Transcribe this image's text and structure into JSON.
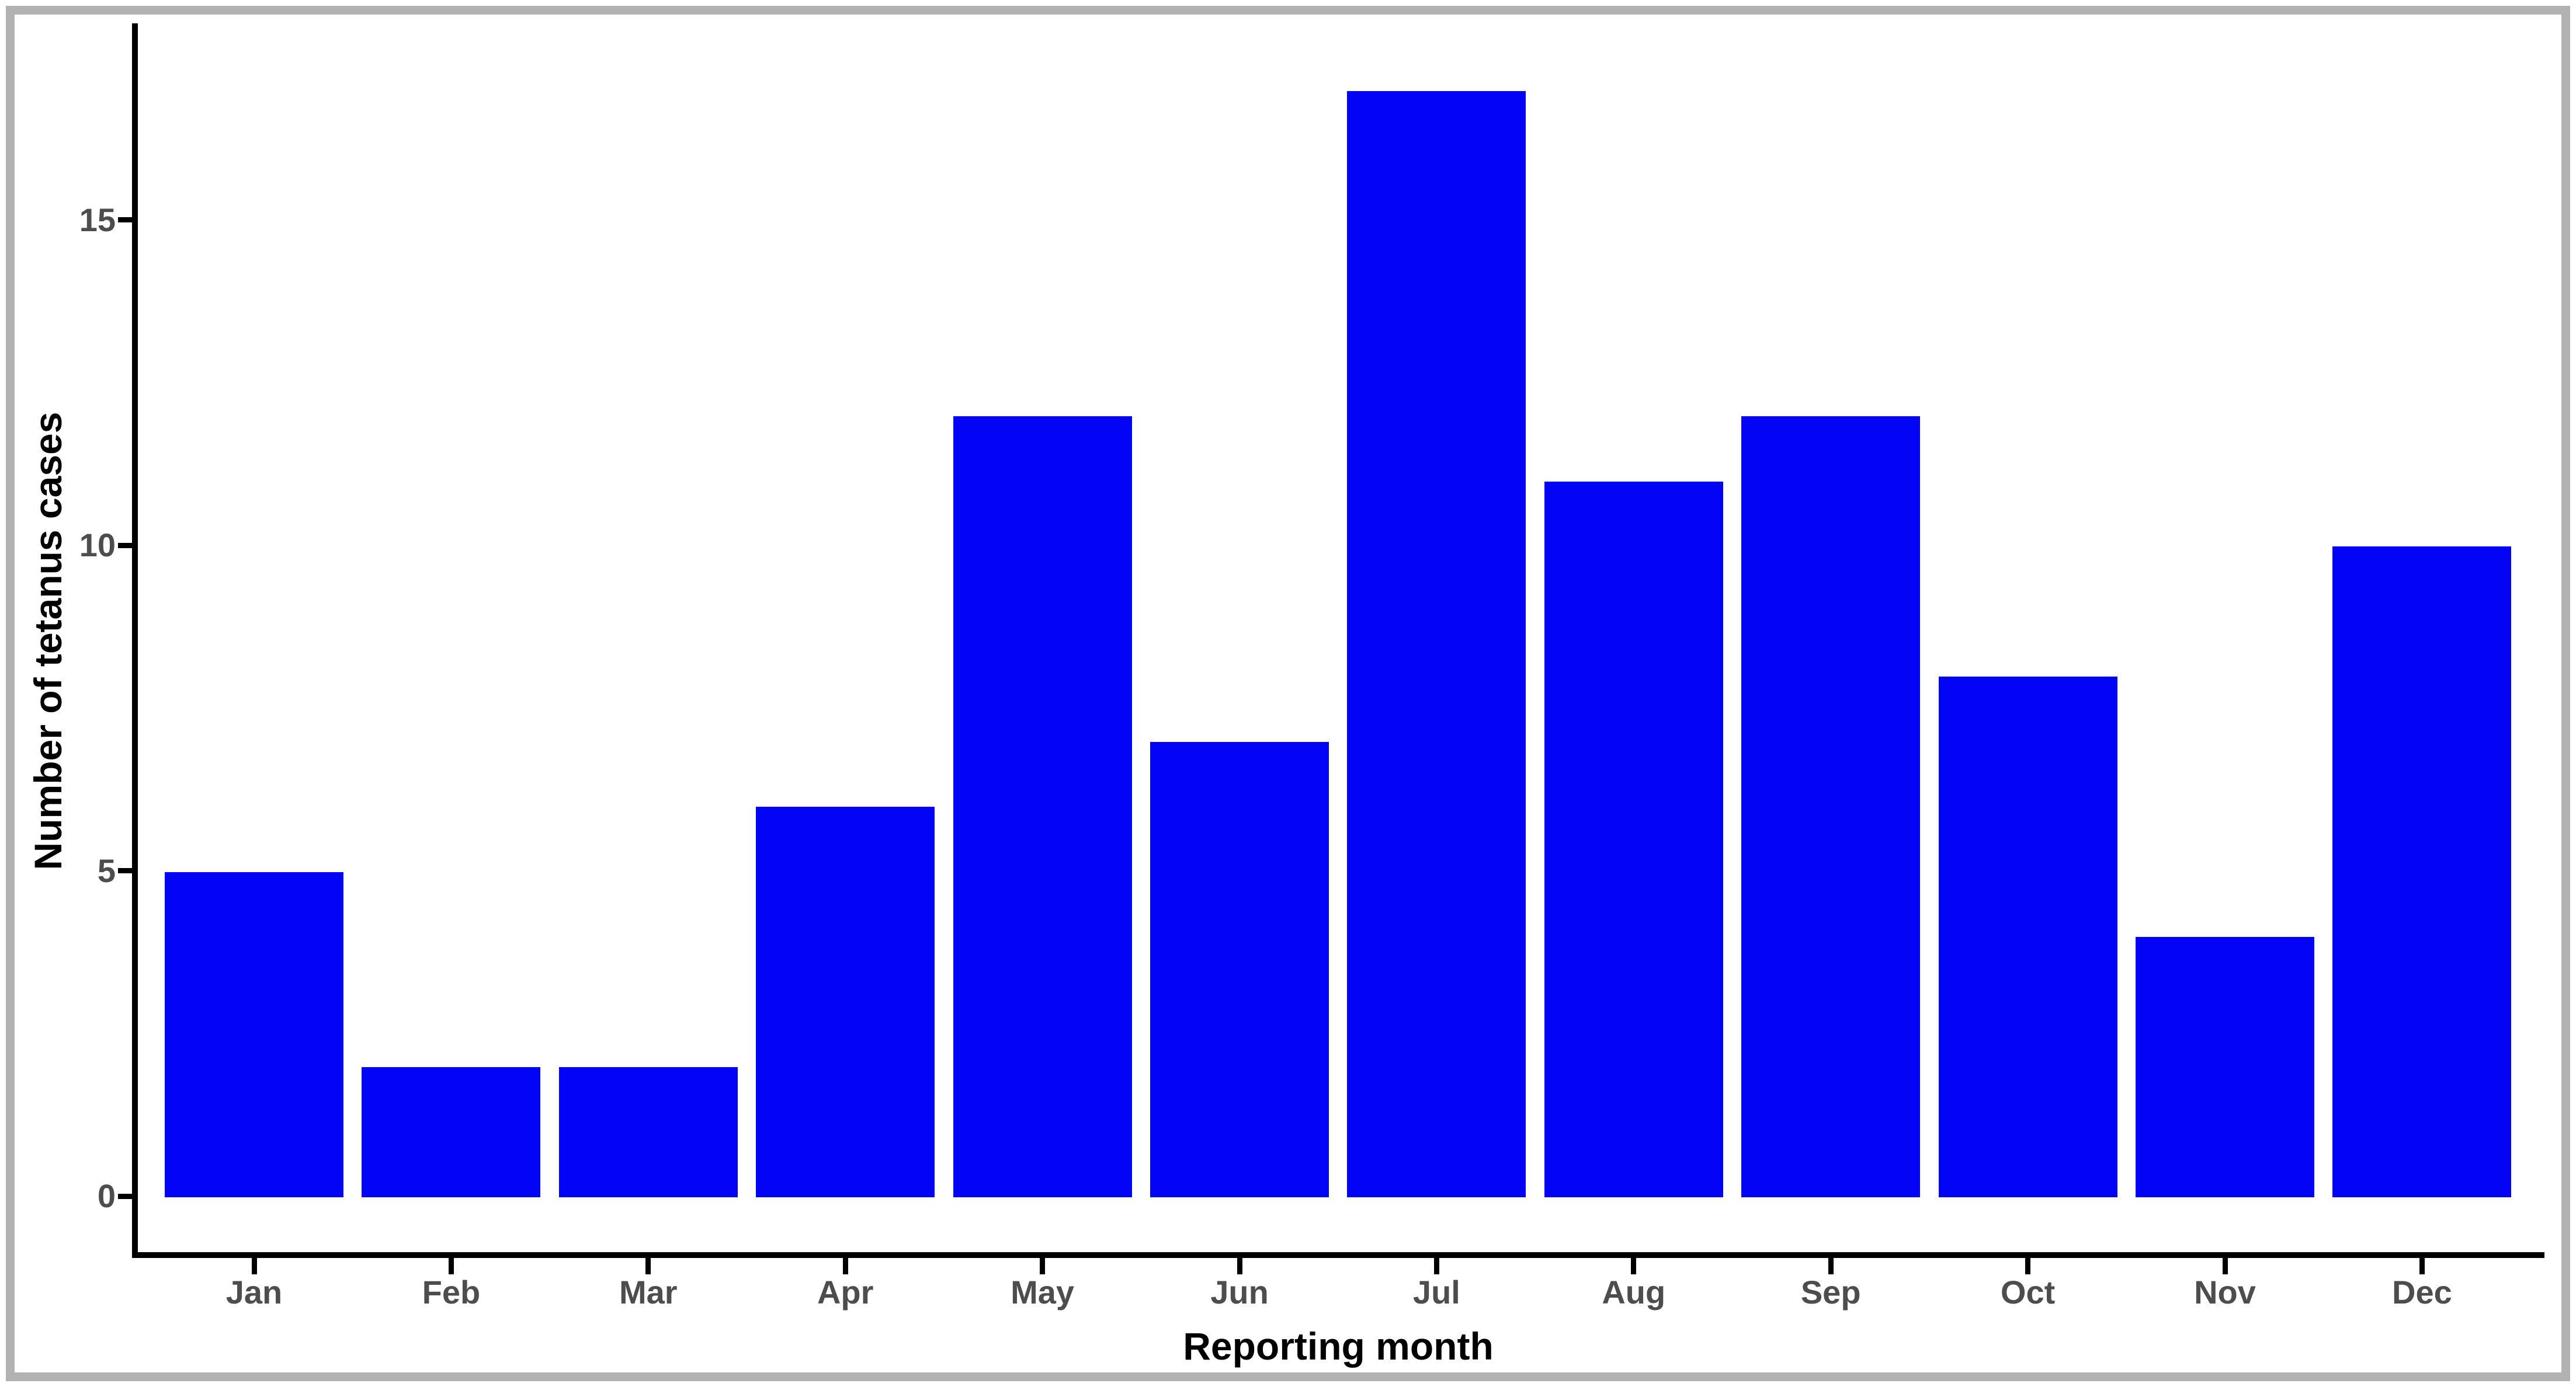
{
  "figure": {
    "background_color": "#ffffff",
    "frame_color": "#b2b2b2",
    "axis_line_color": "#000000",
    "tick_label_color": "#4d4d4d",
    "axis_title_color": "#000000"
  },
  "chart_data": {
    "type": "bar",
    "categories": [
      "Jan",
      "Feb",
      "Mar",
      "Apr",
      "May",
      "Jun",
      "Jul",
      "Aug",
      "Sep",
      "Oct",
      "Nov",
      "Dec"
    ],
    "values": [
      5,
      2,
      2,
      6,
      12,
      7,
      17,
      11,
      12,
      8,
      4,
      10
    ],
    "xlabel": "Reporting month",
    "ylabel": "Number of tetanus cases",
    "y_ticks": [
      0,
      5,
      10,
      15
    ],
    "ylim": [
      0,
      17.85
    ],
    "bar_color": "#0303f5",
    "grid": false,
    "legend": false
  }
}
